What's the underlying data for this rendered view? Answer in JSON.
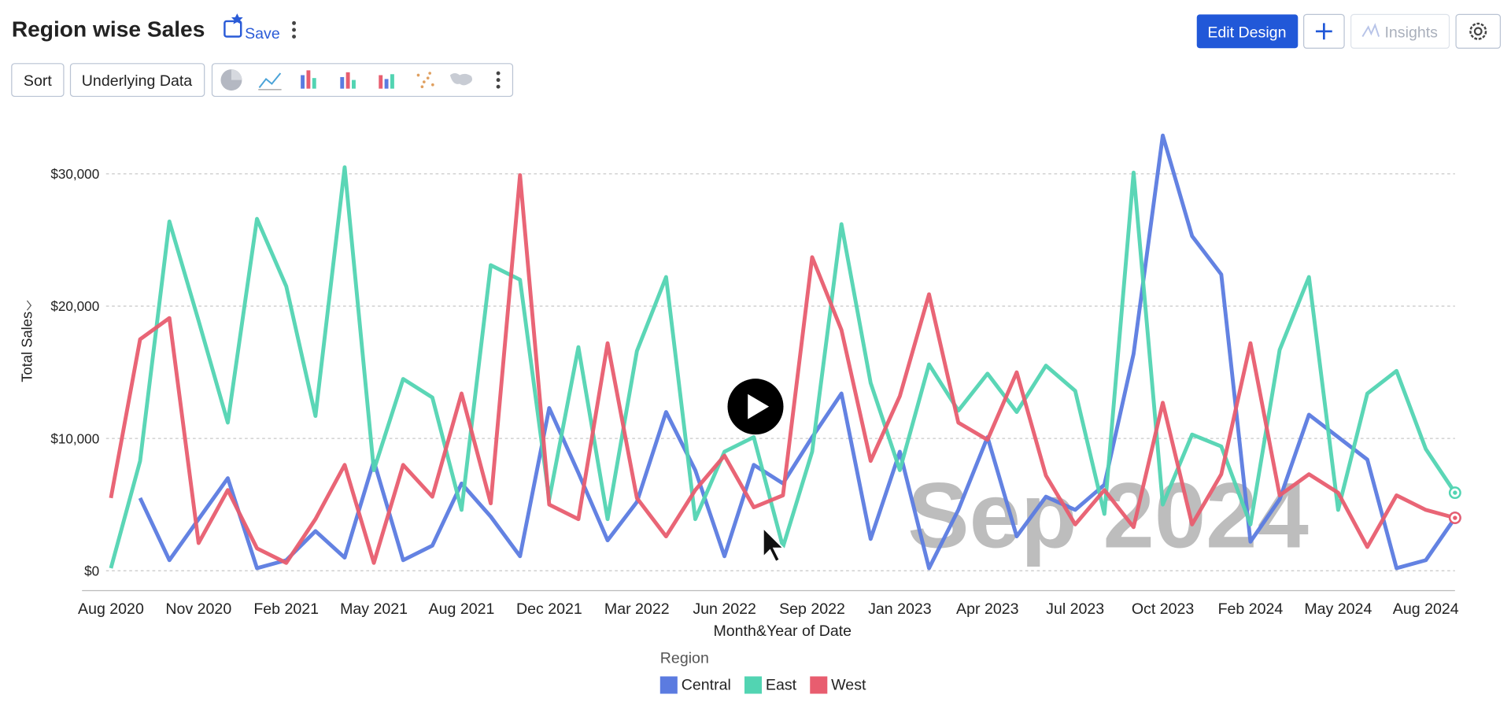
{
  "header": {
    "save": "Save",
    "edit_design": "Edit Design",
    "insights": "Insights"
  },
  "toolbar": {
    "sort": "Sort",
    "underlying_data": "Underlying Data"
  },
  "chart_data": {
    "type": "line",
    "title": "Region wise Sales",
    "x_label": "Month&Year of Date",
    "y_label": "Total Sales",
    "watermark": "Sep 2024",
    "legend_title": "Region",
    "grid": true,
    "categories": [
      "Aug 2020",
      null,
      null,
      "Nov 2020",
      null,
      null,
      "Feb 2021",
      null,
      null,
      "May 2021",
      null,
      null,
      "Aug 2021",
      null,
      null,
      "Dec 2021",
      null,
      null,
      "Mar 2022",
      null,
      null,
      "Jun 2022",
      null,
      null,
      "Sep 2022",
      null,
      null,
      "Jan 2023",
      null,
      null,
      "Apr 2023",
      null,
      null,
      "Jul 2023",
      null,
      null,
      "Oct 2023",
      null,
      null,
      "Feb 2024",
      null,
      null,
      "May 2024",
      null,
      null,
      "Aug 2024",
      null
    ],
    "ylim": [
      -1500,
      34000
    ],
    "yticks": [
      {
        "value": 0,
        "label": "$0"
      },
      {
        "value": 10000,
        "label": "$10,000"
      },
      {
        "value": 20000,
        "label": "$20,000"
      },
      {
        "value": 30000,
        "label": "$30,000"
      }
    ],
    "series": [
      {
        "name": "Central",
        "color": "#5b7be0",
        "values": [
          null,
          5500,
          800,
          3900,
          7000,
          200,
          800,
          3000,
          1000,
          8300,
          800,
          1900,
          6600,
          4100,
          1100,
          12300,
          7400,
          2300,
          5200,
          12000,
          7600,
          1100,
          8000,
          6600,
          10100,
          13400,
          2400,
          9000,
          200,
          4600,
          10100,
          2600,
          5600,
          4600,
          6500,
          16400,
          32900,
          25300,
          22400,
          2200,
          5400,
          11800,
          10100,
          8400,
          200,
          800,
          4000
        ]
      },
      {
        "name": "East",
        "color": "#52d4b2",
        "values": [
          200,
          8300,
          26400,
          18900,
          11200,
          26600,
          21500,
          11700,
          30500,
          7600,
          14500,
          13100,
          4600,
          23100,
          22000,
          5400,
          16900,
          3900,
          16600,
          22200,
          3900,
          9000,
          10100,
          1800,
          9000,
          26200,
          14200,
          7600,
          15600,
          12100,
          14900,
          12000,
          15500,
          13600,
          4300,
          30100,
          5000,
          10300,
          9400,
          3500,
          16700,
          22200,
          4600,
          13400,
          15100,
          9200,
          5900
        ]
      },
      {
        "name": "West",
        "color": "#e85d6f",
        "values": [
          5500,
          17500,
          19100,
          2100,
          6100,
          1700,
          600,
          3900,
          8000,
          600,
          8000,
          5600,
          13400,
          5100,
          29900,
          5000,
          3900,
          17200,
          5500,
          2600,
          6100,
          8700,
          4800,
          5700,
          23700,
          18200,
          8300,
          13200,
          20900,
          11200,
          9900,
          15000,
          7200,
          3500,
          6100,
          3300,
          12700,
          3500,
          7300,
          17200,
          5700,
          7300,
          5900,
          1800,
          5700,
          4600,
          4000
        ]
      }
    ]
  }
}
